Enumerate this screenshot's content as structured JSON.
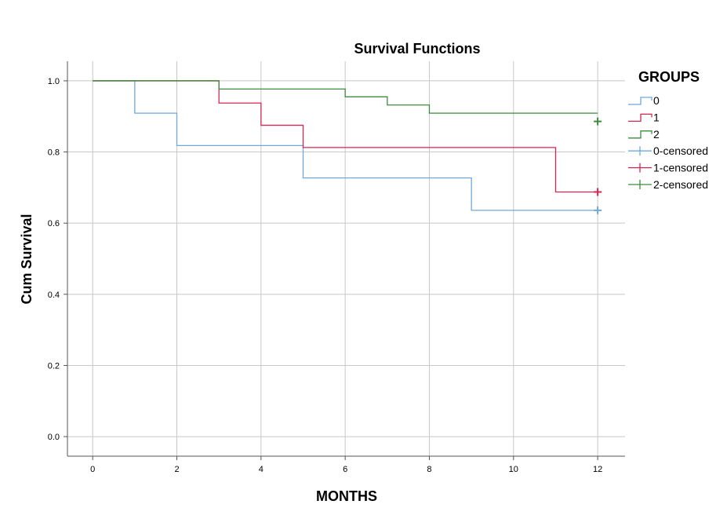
{
  "chart_data": {
    "type": "line",
    "subtype": "kaplan-meier-step",
    "title": "Survival Functions",
    "xlabel": "MONTHS",
    "ylabel": "Cum Survival",
    "xlim": [
      -0.6,
      12.65
    ],
    "ylim": [
      -0.055,
      1.055
    ],
    "x_ticks": [
      0,
      2,
      4,
      6,
      8,
      10,
      12
    ],
    "y_ticks": [
      0.0,
      0.2,
      0.4,
      0.6,
      0.8,
      1.0
    ],
    "y_tick_labels": [
      "0.0",
      "0.2",
      "0.4",
      "0.6",
      "0.8",
      "1.0"
    ],
    "grid": true,
    "legend_title": "GROUPS",
    "legend_position": "right",
    "series": [
      {
        "name": "0",
        "color": "#6fa8dc",
        "steps": [
          [
            0,
            1.0
          ],
          [
            1,
            0.909
          ],
          [
            2,
            0.818
          ],
          [
            5,
            0.727
          ],
          [
            9,
            0.636
          ]
        ],
        "end_x": 12,
        "censored": [
          [
            12,
            0.636
          ]
        ]
      },
      {
        "name": "1",
        "color": "#d6264f",
        "steps": [
          [
            0,
            1.0
          ],
          [
            3,
            0.9375
          ],
          [
            4,
            0.875
          ],
          [
            5,
            0.8125
          ],
          [
            11,
            0.6875
          ]
        ],
        "end_x": 12,
        "censored": [
          [
            12,
            0.6875
          ]
        ]
      },
      {
        "name": "2",
        "color": "#3c8c3c",
        "steps": [
          [
            0,
            1.0
          ],
          [
            3,
            0.977
          ],
          [
            6,
            0.955
          ],
          [
            7,
            0.932
          ],
          [
            8,
            0.909
          ]
        ],
        "end_x": 12,
        "censored": [
          [
            12,
            0.886
          ]
        ]
      }
    ],
    "legend_entries": [
      {
        "label": "0",
        "kind": "line",
        "series": 0
      },
      {
        "label": "1",
        "kind": "line",
        "series": 1
      },
      {
        "label": "2",
        "kind": "line",
        "series": 2
      },
      {
        "label": "0-censored",
        "kind": "censor",
        "series": 0
      },
      {
        "label": "1-censored",
        "kind": "censor",
        "series": 1
      },
      {
        "label": "2-censored",
        "kind": "censor",
        "series": 2
      }
    ]
  }
}
